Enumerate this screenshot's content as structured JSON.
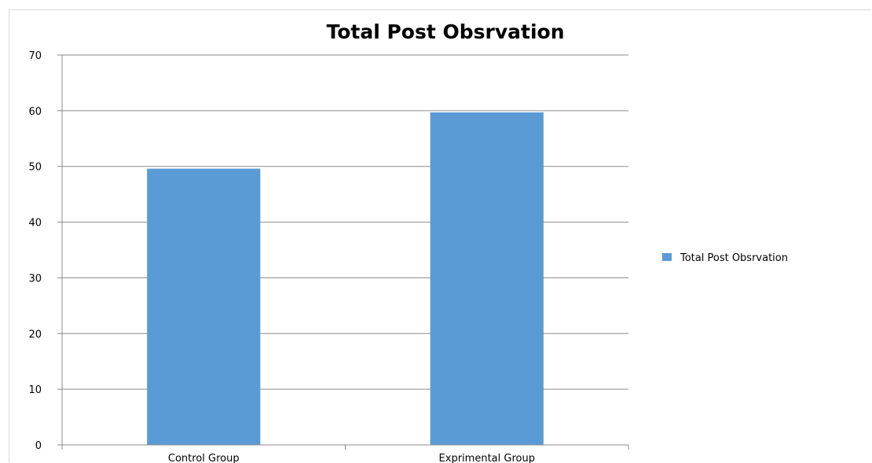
{
  "chart_data": {
    "type": "bar",
    "title": "Total Post Obsrvation",
    "categories": [
      "Control Group",
      "Exprimental Group"
    ],
    "series": [
      {
        "name": "Total Post Obsrvation",
        "values": [
          49.6,
          59.7
        ]
      }
    ],
    "ylim": [
      0,
      70
    ],
    "yticks": [
      "0",
      "10",
      "20",
      "30",
      "40",
      "50",
      "60",
      "70"
    ],
    "xlabel": "",
    "ylabel": "",
    "grid": true,
    "legend_position": "right",
    "colors": {
      "bar": "#5b9bd5",
      "grid": "#8c8c8c",
      "axis": "#8c8c8c",
      "frame": "#d9d9d9"
    }
  }
}
